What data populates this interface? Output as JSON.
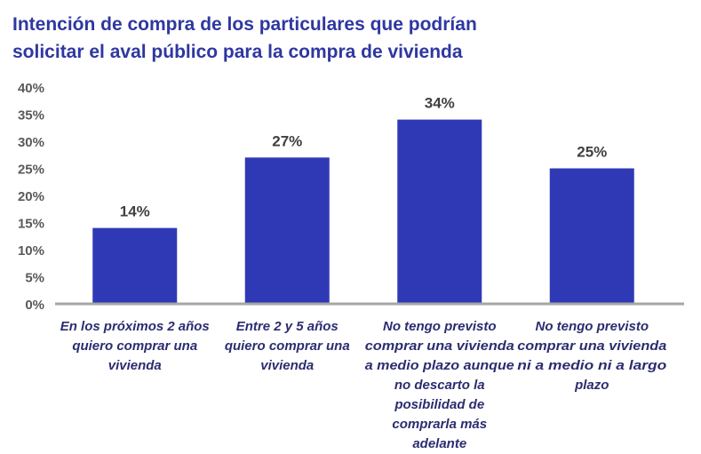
{
  "chart_data": {
    "type": "bar",
    "title": [
      "Intención de compra de los particulares que podrían",
      "solicitar el aval público para la compra de vivienda"
    ],
    "categories": [
      [
        "En los próximos 2 años",
        "quiero comprar una",
        "vivienda"
      ],
      [
        "Entre 2 y 5 años",
        "quiero comprar una",
        "vivienda"
      ],
      [
        "No tengo previsto",
        "comprar una vivienda",
        "a medio plazo aunque",
        "no descarto la",
        "posibilidad de",
        "comprarla más",
        "adelante"
      ],
      [
        "No tengo previsto",
        "comprar una vivienda",
        "ni a medio ni a largo",
        "plazo"
      ]
    ],
    "values": [
      14,
      27,
      34,
      25
    ],
    "data_labels": [
      "14%",
      "27%",
      "34%",
      "25%"
    ],
    "ylim": [
      0,
      40
    ],
    "yticks": [
      0,
      5,
      10,
      15,
      20,
      25,
      30,
      35,
      40
    ],
    "ytick_labels": [
      "0%",
      "5%",
      "10%",
      "15%",
      "20%",
      "25%",
      "30%",
      "35%",
      "40%"
    ],
    "xlabel": "",
    "ylabel": "",
    "grid": false,
    "colors": {
      "bar": "#3039b5",
      "title": "#2f37a0",
      "category_label": "#2b2d70",
      "data_label": "#404040",
      "axis": "#a6a6a6"
    }
  }
}
